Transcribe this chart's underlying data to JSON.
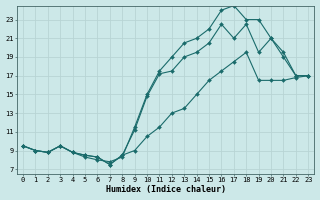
{
  "title": "",
  "xlabel": "Humidex (Indice chaleur)",
  "ylabel": "",
  "bg_color": "#cce8e8",
  "grid_color": "#b8d4d4",
  "line_color": "#1a6b6b",
  "xlim": [
    -0.5,
    23.5
  ],
  "ylim": [
    6.5,
    24.5
  ],
  "xticks": [
    0,
    1,
    2,
    3,
    4,
    5,
    6,
    7,
    8,
    9,
    10,
    11,
    12,
    13,
    14,
    15,
    16,
    17,
    18,
    19,
    20,
    21,
    22,
    23
  ],
  "yticks": [
    7,
    9,
    11,
    13,
    15,
    17,
    19,
    21,
    23
  ],
  "line1_x": [
    0,
    1,
    2,
    3,
    4,
    5,
    6,
    7,
    8,
    9,
    10,
    11,
    12,
    13,
    14,
    15,
    16,
    17,
    18,
    19,
    20,
    21,
    22,
    23
  ],
  "line1_y": [
    9.5,
    9.0,
    8.8,
    9.5,
    8.8,
    8.5,
    8.3,
    7.5,
    8.5,
    11.2,
    14.8,
    17.2,
    17.5,
    19.0,
    19.5,
    20.5,
    22.5,
    21.0,
    22.5,
    19.5,
    21.0,
    19.0,
    17.0,
    17.0
  ],
  "line2_x": [
    0,
    1,
    2,
    3,
    4,
    5,
    6,
    7,
    8,
    9,
    10,
    11,
    12,
    13,
    14,
    15,
    16,
    17,
    18,
    19,
    20,
    21,
    22,
    23
  ],
  "line2_y": [
    9.5,
    9.0,
    8.8,
    9.5,
    8.8,
    8.3,
    8.0,
    7.8,
    8.3,
    11.5,
    15.0,
    17.5,
    19.0,
    20.5,
    21.0,
    22.0,
    24.0,
    24.5,
    23.0,
    23.0,
    21.0,
    19.5,
    17.0,
    17.0
  ],
  "line3_x": [
    0,
    1,
    2,
    3,
    4,
    5,
    6,
    7,
    8,
    9,
    10,
    11,
    12,
    13,
    14,
    15,
    16,
    17,
    18,
    19,
    20,
    21,
    22,
    23
  ],
  "line3_y": [
    9.5,
    9.0,
    8.8,
    9.5,
    8.8,
    8.5,
    8.3,
    7.5,
    8.5,
    9.0,
    10.5,
    11.5,
    13.0,
    13.5,
    15.0,
    16.5,
    17.5,
    18.5,
    19.5,
    16.5,
    16.5,
    16.5,
    16.8,
    17.0
  ],
  "xlabel_fontsize": 6,
  "tick_fontsize": 5
}
